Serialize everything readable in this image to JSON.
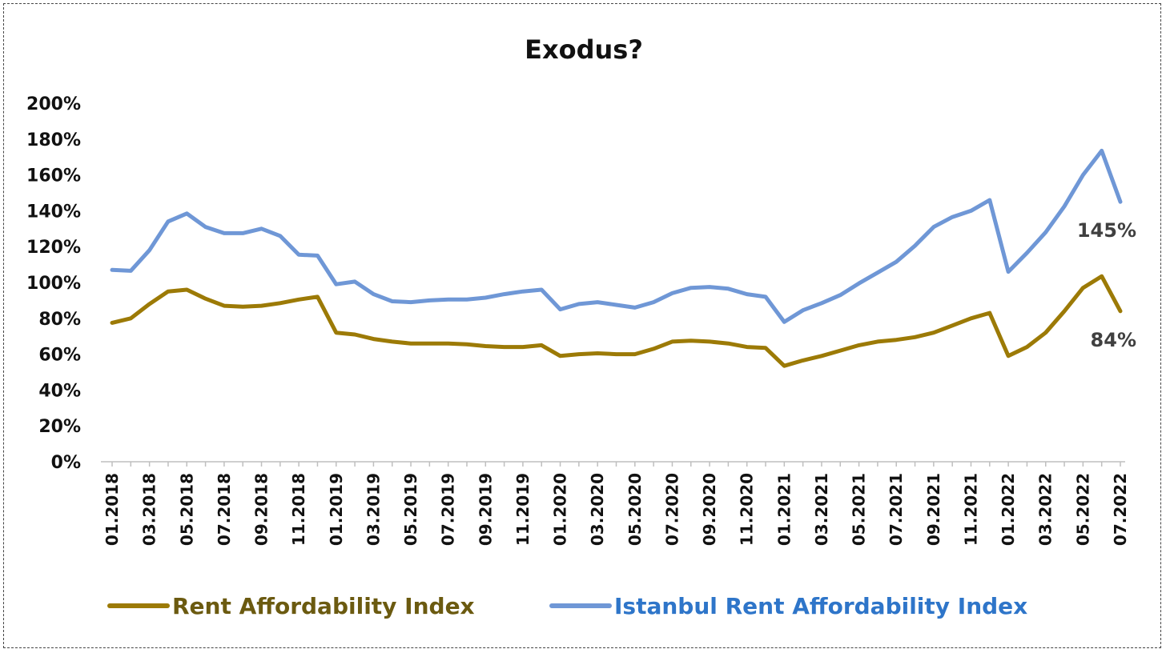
{
  "chart_data": {
    "type": "line",
    "title": "Exodus?",
    "xlabel": "",
    "ylabel": "",
    "ylim": [
      0,
      200
    ],
    "y_ticks": [
      "0%",
      "20%",
      "40%",
      "60%",
      "80%",
      "100%",
      "120%",
      "140%",
      "160%",
      "180%",
      "200%"
    ],
    "y_tick_values": [
      0,
      20,
      40,
      60,
      80,
      100,
      120,
      140,
      160,
      180,
      200
    ],
    "categories": [
      "01.2018",
      "02.2018",
      "03.2018",
      "04.2018",
      "05.2018",
      "06.2018",
      "07.2018",
      "08.2018",
      "09.2018",
      "10.2018",
      "11.2018",
      "12.2018",
      "01.2019",
      "02.2019",
      "03.2019",
      "04.2019",
      "05.2019",
      "06.2019",
      "07.2019",
      "08.2019",
      "09.2019",
      "10.2019",
      "11.2019",
      "12.2019",
      "01.2020",
      "02.2020",
      "03.2020",
      "04.2020",
      "05.2020",
      "06.2020",
      "07.2020",
      "08.2020",
      "09.2020",
      "10.2020",
      "11.2020",
      "12.2020",
      "01.2021",
      "02.2021",
      "03.2021",
      "04.2021",
      "05.2021",
      "06.2021",
      "07.2021",
      "08.2021",
      "09.2021",
      "10.2021",
      "11.2021",
      "12.2021",
      "01.2022",
      "02.2022",
      "03.2022",
      "04.2022",
      "05.2022",
      "06.2022",
      "07.2022"
    ],
    "x_tick_labels": [
      "01.2018",
      "03.2018",
      "05.2018",
      "07.2018",
      "09.2018",
      "11.2018",
      "01.2019",
      "03.2019",
      "05.2019",
      "07.2019",
      "09.2019",
      "11.2019",
      "01.2020",
      "03.2020",
      "05.2020",
      "07.2020",
      "09.2020",
      "11.2020",
      "01.2021",
      "03.2021",
      "05.2021",
      "07.2021",
      "09.2021",
      "11.2021",
      "01.2022",
      "03.2022",
      "05.2022",
      "07.2022"
    ],
    "series": [
      {
        "name": "Rent Affordability Index",
        "color": "#9c7a06",
        "legend_text_color": "#6b5a10",
        "values": [
          77.5,
          80,
          88,
          95,
          96,
          91,
          87,
          86.5,
          87,
          88.5,
          90.5,
          92,
          72,
          71,
          68.5,
          67,
          66,
          66,
          66,
          65.5,
          64.5,
          64,
          64,
          65,
          59,
          60,
          60.5,
          60,
          60,
          63,
          67,
          67.5,
          67,
          66,
          64,
          63.5,
          53.5,
          56.5,
          59,
          62,
          65,
          67,
          68,
          69.5,
          72,
          76,
          80,
          83,
          59,
          64,
          72,
          84,
          97,
          103.5,
          84
        ],
        "end_label": "84%"
      },
      {
        "name": "Istanbul Rent Affordability Index",
        "color": "#6f97d6",
        "legend_text_color": "#2e75c9",
        "values": [
          107,
          106.5,
          118,
          134,
          138.5,
          131,
          127.5,
          127.5,
          130,
          126,
          115.5,
          115,
          99,
          100.5,
          93.5,
          89.5,
          89,
          90,
          90.5,
          90.5,
          91.5,
          93.5,
          95,
          96,
          85,
          88,
          89,
          87.5,
          86,
          89,
          94,
          97,
          97.5,
          96.5,
          93.5,
          92,
          78,
          84.5,
          88.5,
          93,
          99.5,
          105.5,
          111.5,
          120.5,
          131,
          136.5,
          140,
          146,
          106,
          116.5,
          128,
          142.5,
          160,
          173.5,
          145
        ],
        "end_label": "145%"
      }
    ],
    "grid": false,
    "legend_position": "bottom"
  }
}
